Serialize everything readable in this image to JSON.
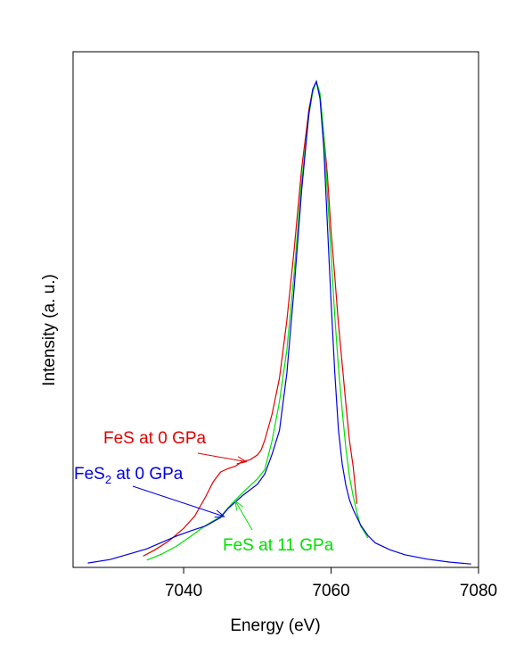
{
  "chart_data": {
    "type": "line",
    "title": "",
    "xlabel": "Energy (eV)",
    "ylabel": "Intensity (a. u.)",
    "xlim": [
      7025,
      7080
    ],
    "ylim": [
      0,
      100
    ],
    "grid": false,
    "legend": "none",
    "x_ticks": [
      "7040",
      "7060",
      "7080"
    ],
    "x_tick_values": [
      7040,
      7060,
      7080
    ],
    "series": [
      {
        "name": "FeS at 0 GPa",
        "color": "#e00000",
        "x": [
          7034.5,
          7036,
          7038,
          7040,
          7041.5,
          7043,
          7044,
          7045,
          7046,
          7047,
          7048,
          7049,
          7050,
          7050.5,
          7051,
          7052,
          7053,
          7054,
          7055,
          7056,
          7057,
          7057.5,
          7058,
          7058.5,
          7059,
          7059.5,
          7060,
          7060.5,
          7061,
          7061.5,
          7062,
          7062.5,
          7063,
          7063.5
        ],
        "y": [
          2.3,
          3.5,
          5.4,
          8.0,
          10.5,
          14.5,
          17.5,
          19.5,
          20.2,
          20.7,
          21.7,
          22.0,
          23.0,
          24.0,
          26.0,
          31.4,
          38.7,
          50.5,
          65.2,
          81.6,
          93.7,
          97.6,
          99.3,
          96.7,
          88.6,
          80.3,
          68.8,
          59.5,
          49.8,
          41.6,
          33.5,
          25.9,
          20.5,
          13.0
        ]
      },
      {
        "name": "FeS at 11 GPa",
        "color": "#00e000",
        "x": [
          7035,
          7037,
          7039,
          7041,
          7043,
          7045,
          7046.5,
          7048,
          7050,
          7051,
          7052,
          7053,
          7054,
          7055,
          7056,
          7057,
          7057.5,
          7058,
          7058.5,
          7059,
          7059.5,
          7060,
          7060.5,
          7061,
          7061.5,
          7062,
          7062.5,
          7063,
          7063.5,
          7064,
          7065
        ],
        "y": [
          1.5,
          2.7,
          4.3,
          6.4,
          8.6,
          10.4,
          13.0,
          15.3,
          18.1,
          20.0,
          26.0,
          33.9,
          44.5,
          60.5,
          79.0,
          92.6,
          97.2,
          99.4,
          97.0,
          88.8,
          76.5,
          63.9,
          51.4,
          40.9,
          32.1,
          24.4,
          18.5,
          14.5,
          11.3,
          8.5,
          6.0
        ]
      },
      {
        "name": "FeS2 at 0 GPa",
        "color": "#0000e0",
        "x": [
          7027,
          7030,
          7033,
          7035,
          7037,
          7039,
          7041,
          7043,
          7045,
          7046,
          7048,
          7050,
          7051,
          7052,
          7053,
          7054,
          7055,
          7056,
          7057,
          7057.5,
          7058,
          7058.5,
          7059,
          7059.5,
          7060,
          7060.5,
          7061,
          7061.5,
          7062,
          7062.5,
          7063,
          7064,
          7065,
          7066,
          7068,
          7070,
          7073,
          7076,
          7079
        ],
        "y": [
          0.9,
          1.6,
          2.9,
          3.8,
          5.1,
          6.4,
          7.5,
          8.5,
          10.2,
          12.0,
          14.7,
          17.0,
          19.1,
          23.2,
          28.0,
          39.7,
          57.4,
          77.1,
          93.0,
          97.8,
          99.4,
          95.9,
          85.9,
          70.1,
          54.4,
          39.8,
          28.1,
          21.2,
          16.8,
          13.8,
          11.8,
          8.7,
          6.5,
          5.0,
          3.6,
          2.6,
          1.7,
          1.1,
          0.7
        ]
      }
    ],
    "annotations": [
      {
        "text": "FeS at 0 GPa",
        "color": "#e00000",
        "arrow_to": [
          7048.5,
          21.6
        ]
      },
      {
        "text_main": "FeS",
        "text_sub": "2",
        "text_tail": " at 0 GPa",
        "color": "#0000e0",
        "arrow_to": [
          7045.5,
          10.4
        ]
      },
      {
        "text": "FeS at 11 GPa",
        "color": "#00e000",
        "arrow_to": [
          7047,
          13.6
        ]
      }
    ]
  }
}
